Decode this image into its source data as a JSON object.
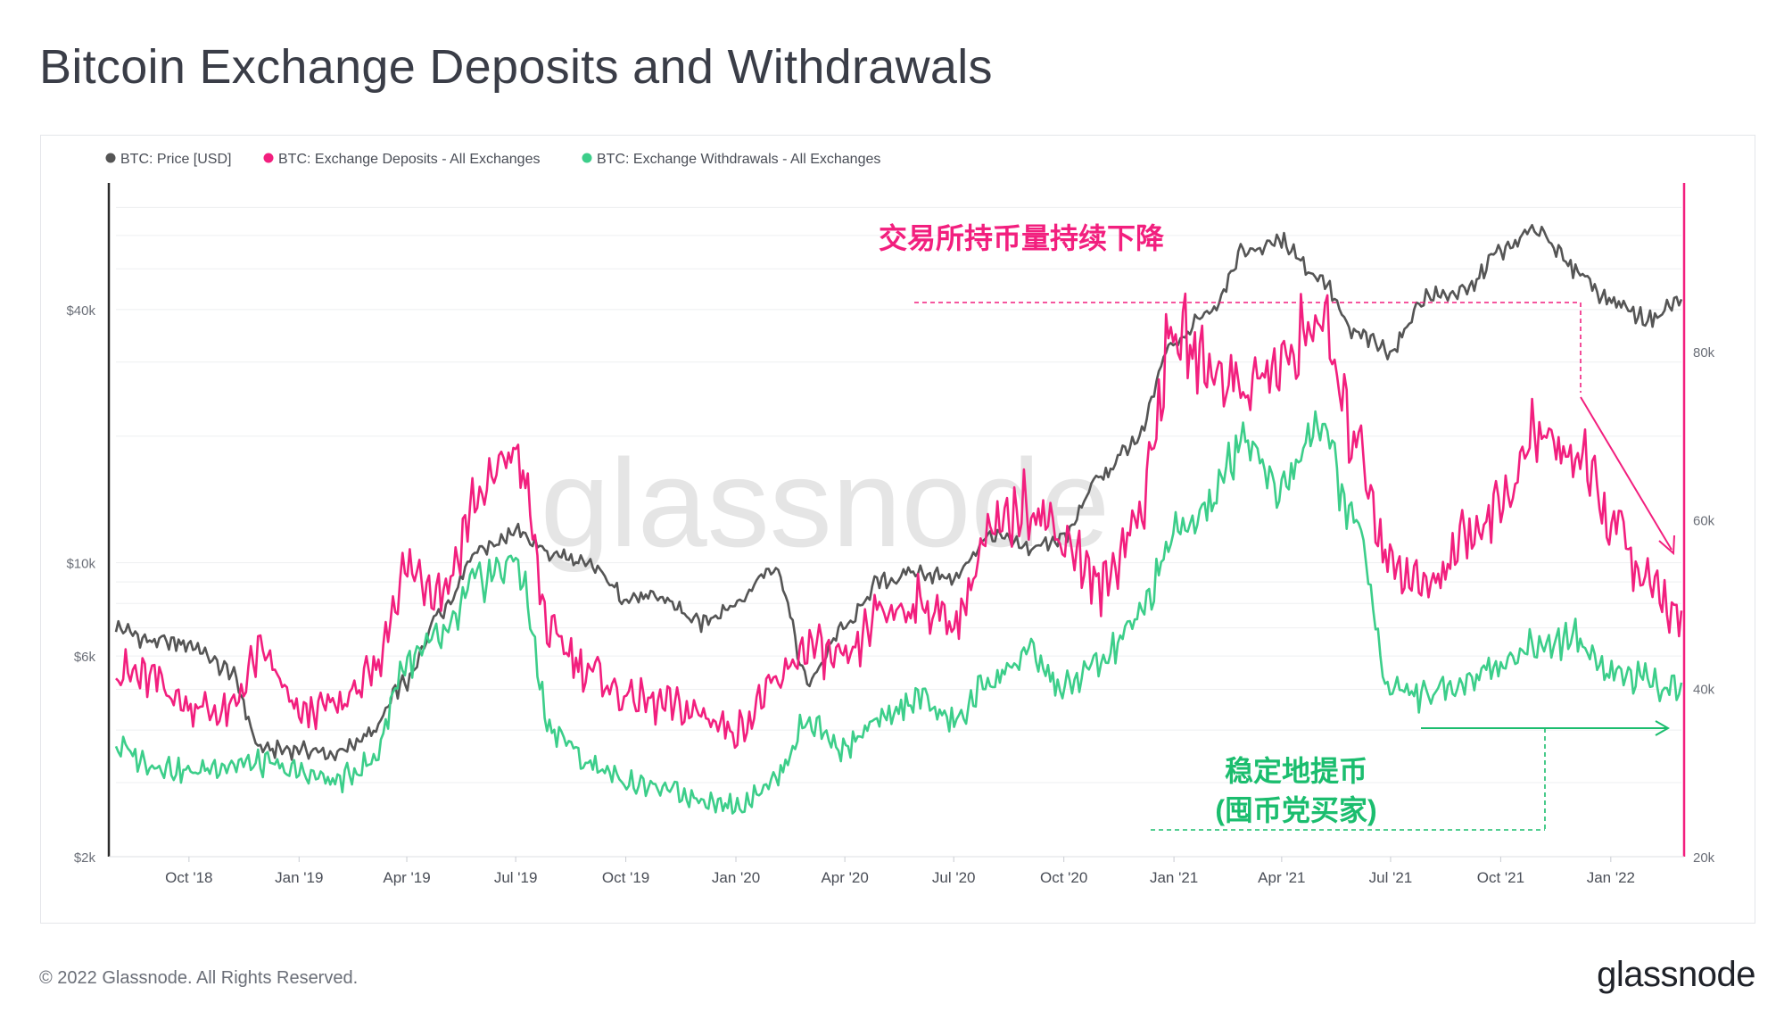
{
  "title": "Bitcoin Exchange Deposits and Withdrawals",
  "footer": "© 2022 Glassnode. All Rights Reserved.",
  "brand": "glassnode",
  "watermark": "glassnode",
  "colors": {
    "price": "#555555",
    "deposits": "#f21f7e",
    "withdrawals": "#3cce8a",
    "axis_right": "#f21f7e"
  },
  "chart_data": {
    "type": "line",
    "legend": [
      "BTC: Price [USD]",
      "BTC: Exchange Deposits - All Exchanges",
      "BTC: Exchange Withdrawals - All Exchanges"
    ],
    "legend_position": "top-left",
    "x_ticks": [
      "Oct '18",
      "Jan '19",
      "Apr '19",
      "Jul '19",
      "Oct '19",
      "Jan '20",
      "Apr '20",
      "Jul '20",
      "Oct '20",
      "Jan '21",
      "Apr '21",
      "Jul '21",
      "Oct '21",
      "Jan '22"
    ],
    "y_left": {
      "scale": "log",
      "range": [
        2000,
        80000
      ],
      "tick_labels": [
        "$2k",
        "$6k",
        "$10k",
        "$40k"
      ],
      "tick_values": [
        2000,
        6000,
        10000,
        40000
      ]
    },
    "y_right": {
      "range": [
        20000,
        100000
      ],
      "tick_labels": [
        "20k",
        "40k",
        "60k",
        "80k"
      ],
      "tick_values": [
        20000,
        40000,
        60000,
        80000
      ]
    },
    "grid": true,
    "series": [
      {
        "name": "BTC: Price [USD]",
        "axis": "left",
        "x": [
          "2018-08",
          "2018-09",
          "2018-10",
          "2018-11",
          "2018-12",
          "2019-01",
          "2019-02",
          "2019-03",
          "2019-04",
          "2019-05",
          "2019-06",
          "2019-07",
          "2019-08",
          "2019-09",
          "2019-10",
          "2019-11",
          "2019-12",
          "2020-01",
          "2020-02",
          "2020-03",
          "2020-04",
          "2020-05",
          "2020-06",
          "2020-07",
          "2020-08",
          "2020-09",
          "2020-10",
          "2020-11",
          "2020-12",
          "2021-01",
          "2021-02",
          "2021-03",
          "2021-04",
          "2021-05",
          "2021-06",
          "2021-07",
          "2021-08",
          "2021-09",
          "2021-10",
          "2021-11",
          "2021-12",
          "2022-01",
          "2022-02",
          "2022-03"
        ],
        "values": [
          7000,
          6500,
          6400,
          5600,
          3600,
          3600,
          3500,
          3900,
          5200,
          7800,
          10800,
          11800,
          10500,
          9800,
          8300,
          8200,
          7200,
          8000,
          9800,
          5200,
          7000,
          9000,
          9500,
          9200,
          11600,
          10800,
          11500,
          16000,
          19500,
          33000,
          40000,
          55000,
          58000,
          48000,
          35000,
          32000,
          43000,
          44000,
          55000,
          62000,
          50000,
          42000,
          38000,
          42000
        ]
      },
      {
        "name": "BTC: Exchange Deposits - All Exchanges",
        "axis": "right",
        "x": [
          "2018-08",
          "2018-09",
          "2018-10",
          "2018-11",
          "2018-12",
          "2019-01",
          "2019-02",
          "2019-03",
          "2019-04",
          "2019-05",
          "2019-06",
          "2019-07",
          "2019-08",
          "2019-09",
          "2019-10",
          "2019-11",
          "2019-12",
          "2020-01",
          "2020-02",
          "2020-03",
          "2020-04",
          "2020-05",
          "2020-06",
          "2020-07",
          "2020-08",
          "2020-09",
          "2020-10",
          "2020-11",
          "2020-12",
          "2021-01",
          "2021-02",
          "2021-03",
          "2021-04",
          "2021-05",
          "2021-06",
          "2021-07",
          "2021-08",
          "2021-09",
          "2021-10",
          "2021-11",
          "2021-12",
          "2022-01",
          "2022-02",
          "2022-03"
        ],
        "values": [
          42000,
          41000,
          38000,
          37000,
          44000,
          37000,
          38000,
          41000,
          54000,
          52000,
          63000,
          68000,
          46000,
          42000,
          39000,
          38000,
          37000,
          35000,
          40000,
          45000,
          43000,
          49000,
          50000,
          48000,
          58000,
          62000,
          58000,
          52000,
          60000,
          82000,
          78000,
          76000,
          78000,
          84000,
          70000,
          55000,
          52000,
          58000,
          62000,
          70000,
          68000,
          60000,
          52000,
          49000
        ]
      },
      {
        "name": "BTC: Exchange Withdrawals - All Exchanges",
        "axis": "right",
        "x": [
          "2018-08",
          "2018-09",
          "2018-10",
          "2018-11",
          "2018-12",
          "2019-01",
          "2019-02",
          "2019-03",
          "2019-04",
          "2019-05",
          "2019-06",
          "2019-07",
          "2019-08",
          "2019-09",
          "2019-10",
          "2019-11",
          "2019-12",
          "2020-01",
          "2020-02",
          "2020-03",
          "2020-04",
          "2020-05",
          "2020-06",
          "2020-07",
          "2020-08",
          "2020-09",
          "2020-10",
          "2020-11",
          "2020-12",
          "2021-01",
          "2021-02",
          "2021-03",
          "2021-04",
          "2021-05",
          "2021-06",
          "2021-07",
          "2021-08",
          "2021-09",
          "2021-10",
          "2021-11",
          "2021-12",
          "2022-01",
          "2022-02",
          "2022-03"
        ],
        "values": [
          33000,
          31000,
          30000,
          31000,
          31000,
          30000,
          29000,
          31000,
          43000,
          46000,
          53000,
          55000,
          35000,
          31000,
          29000,
          28000,
          27000,
          26000,
          29000,
          36000,
          33000,
          36000,
          39000,
          36000,
          41000,
          44000,
          40000,
          43000,
          48000,
          58000,
          62000,
          70000,
          64000,
          72000,
          60000,
          40000,
          39000,
          41000,
          43000,
          45000,
          46000,
          42000,
          41000,
          40000
        ]
      }
    ],
    "annotations": [
      {
        "text": "交易所持币量持续下降",
        "color": "#f21f7e"
      },
      {
        "text": "稳定地提币",
        "color": "#1bbd6e"
      },
      {
        "text": "(囤币党买家)",
        "color": "#1bbd6e"
      }
    ]
  }
}
